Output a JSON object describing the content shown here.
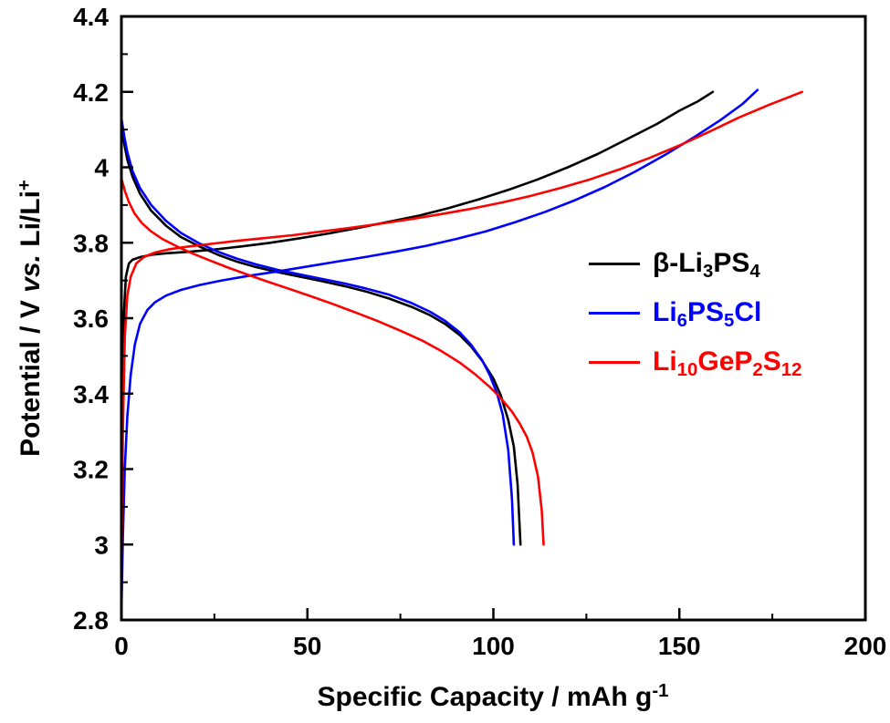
{
  "figure": {
    "background": "#ffffff",
    "axis_color": "#000000"
  },
  "chart_data": {
    "type": "line",
    "title": "",
    "xlabel_parts": [
      {
        "text": "Specific Capacity / mAh g"
      },
      {
        "text": "-1",
        "sup": true
      }
    ],
    "ylabel_parts": [
      {
        "text": "Potential / V "
      },
      {
        "text": "vs.",
        "italic": true
      },
      {
        "text": " Li/Li"
      },
      {
        "text": "+",
        "sup": true
      }
    ],
    "xlim": [
      0,
      200
    ],
    "ylim": [
      2.8,
      4.4
    ],
    "grid": false,
    "legend_position": "right-middle",
    "xticks": [
      0,
      50,
      100,
      150,
      200
    ],
    "xtick_labels": [
      "0",
      "50",
      "100",
      "150",
      "200"
    ],
    "x_minor_ticks": [
      25,
      75,
      125,
      175
    ],
    "yticks": [
      2.8,
      3.0,
      3.2,
      3.4,
      3.6,
      3.8,
      4.0,
      4.2,
      4.4
    ],
    "ytick_labels": [
      "2.8",
      "3",
      "3.2",
      "3.4",
      "3.6",
      "3.8",
      "4",
      "4.2",
      "4.4"
    ],
    "y_minor_ticks": [
      2.9,
      3.1,
      3.3,
      3.5,
      3.7,
      3.9,
      4.1,
      4.3
    ],
    "series": [
      {
        "id": "beta-li3ps4-charge",
        "name": "β-Li3PS4 charge",
        "color": "#000000",
        "points": [
          [
            0,
            2.82
          ],
          [
            0.3,
            3.4
          ],
          [
            0.7,
            3.62
          ],
          [
            1.2,
            3.71
          ],
          [
            2,
            3.745
          ],
          [
            3,
            3.755
          ],
          [
            5,
            3.762
          ],
          [
            8,
            3.768
          ],
          [
            12,
            3.772
          ],
          [
            18,
            3.776
          ],
          [
            25,
            3.782
          ],
          [
            32,
            3.79
          ],
          [
            40,
            3.8
          ],
          [
            48,
            3.812
          ],
          [
            56,
            3.825
          ],
          [
            64,
            3.84
          ],
          [
            72,
            3.856
          ],
          [
            80,
            3.872
          ],
          [
            88,
            3.892
          ],
          [
            96,
            3.915
          ],
          [
            104,
            3.94
          ],
          [
            112,
            3.968
          ],
          [
            120,
            4.0
          ],
          [
            128,
            4.035
          ],
          [
            136,
            4.075
          ],
          [
            144,
            4.115
          ],
          [
            150,
            4.15
          ],
          [
            155,
            4.175
          ],
          [
            159,
            4.2
          ]
        ]
      },
      {
        "id": "beta-li3ps4-discharge",
        "name": "β-Li3PS4 discharge",
        "color": "#000000",
        "points": [
          [
            0,
            4.11
          ],
          [
            0.8,
            4.06
          ],
          [
            1.6,
            4.02
          ],
          [
            3,
            3.975
          ],
          [
            5,
            3.93
          ],
          [
            8,
            3.885
          ],
          [
            12,
            3.845
          ],
          [
            16,
            3.815
          ],
          [
            21,
            3.79
          ],
          [
            26,
            3.768
          ],
          [
            31,
            3.75
          ],
          [
            36,
            3.736
          ],
          [
            42,
            3.722
          ],
          [
            48,
            3.71
          ],
          [
            54,
            3.698
          ],
          [
            60,
            3.685
          ],
          [
            66,
            3.67
          ],
          [
            72,
            3.652
          ],
          [
            78,
            3.63
          ],
          [
            83,
            3.608
          ],
          [
            87,
            3.585
          ],
          [
            91,
            3.555
          ],
          [
            94,
            3.525
          ],
          [
            97,
            3.487
          ],
          [
            100,
            3.44
          ],
          [
            102,
            3.395
          ],
          [
            104,
            3.33
          ],
          [
            105.5,
            3.26
          ],
          [
            106.5,
            3.16
          ],
          [
            107.3,
            3.0
          ]
        ]
      },
      {
        "id": "li6ps5cl-charge",
        "name": "Li6PS5Cl charge",
        "color": "#0000ff",
        "points": [
          [
            0,
            2.82
          ],
          [
            0.4,
            3.02
          ],
          [
            0.9,
            3.2
          ],
          [
            1.6,
            3.34
          ],
          [
            2.5,
            3.45
          ],
          [
            3.6,
            3.53
          ],
          [
            5,
            3.585
          ],
          [
            7,
            3.622
          ],
          [
            9,
            3.642
          ],
          [
            12,
            3.66
          ],
          [
            16,
            3.675
          ],
          [
            21,
            3.688
          ],
          [
            27,
            3.7
          ],
          [
            34,
            3.712
          ],
          [
            42,
            3.724
          ],
          [
            50,
            3.737
          ],
          [
            58,
            3.75
          ],
          [
            66,
            3.763
          ],
          [
            74,
            3.777
          ],
          [
            82,
            3.792
          ],
          [
            90,
            3.81
          ],
          [
            98,
            3.83
          ],
          [
            106,
            3.855
          ],
          [
            114,
            3.882
          ],
          [
            122,
            3.913
          ],
          [
            130,
            3.948
          ],
          [
            138,
            3.988
          ],
          [
            146,
            4.032
          ],
          [
            154,
            4.08
          ],
          [
            161,
            4.125
          ],
          [
            167,
            4.168
          ],
          [
            171,
            4.205
          ]
        ]
      },
      {
        "id": "li6ps5cl-discharge",
        "name": "Li6PS5Cl discharge",
        "color": "#0000ff",
        "points": [
          [
            0,
            4.13
          ],
          [
            0.8,
            4.08
          ],
          [
            1.6,
            4.04
          ],
          [
            3,
            3.99
          ],
          [
            5,
            3.945
          ],
          [
            8,
            3.9
          ],
          [
            12,
            3.858
          ],
          [
            16,
            3.826
          ],
          [
            21,
            3.798
          ],
          [
            26,
            3.776
          ],
          [
            31,
            3.758
          ],
          [
            36,
            3.743
          ],
          [
            42,
            3.728
          ],
          [
            48,
            3.716
          ],
          [
            54,
            3.704
          ],
          [
            60,
            3.692
          ],
          [
            66,
            3.678
          ],
          [
            72,
            3.662
          ],
          [
            78,
            3.64
          ],
          [
            83,
            3.617
          ],
          [
            87,
            3.593
          ],
          [
            91,
            3.562
          ],
          [
            94,
            3.53
          ],
          [
            97,
            3.488
          ],
          [
            99,
            3.45
          ],
          [
            101,
            3.4
          ],
          [
            102.5,
            3.345
          ],
          [
            104,
            3.25
          ],
          [
            105,
            3.12
          ],
          [
            105.5,
            3.0
          ]
        ]
      },
      {
        "id": "li10gep2s12-charge",
        "name": "Li10GeP2S12 charge",
        "color": "#ff0000",
        "points": [
          [
            0,
            2.9
          ],
          [
            0.4,
            3.3
          ],
          [
            0.9,
            3.55
          ],
          [
            1.6,
            3.66
          ],
          [
            2.5,
            3.71
          ],
          [
            4,
            3.745
          ],
          [
            6,
            3.762
          ],
          [
            9,
            3.774
          ],
          [
            13,
            3.783
          ],
          [
            18,
            3.79
          ],
          [
            24,
            3.797
          ],
          [
            31,
            3.805
          ],
          [
            38,
            3.812
          ],
          [
            46,
            3.82
          ],
          [
            54,
            3.83
          ],
          [
            62,
            3.84
          ],
          [
            70,
            3.851
          ],
          [
            78,
            3.863
          ],
          [
            86,
            3.876
          ],
          [
            94,
            3.89
          ],
          [
            102,
            3.906
          ],
          [
            110,
            3.924
          ],
          [
            118,
            3.945
          ],
          [
            126,
            3.968
          ],
          [
            134,
            3.995
          ],
          [
            142,
            4.025
          ],
          [
            150,
            4.058
          ],
          [
            158,
            4.094
          ],
          [
            166,
            4.132
          ],
          [
            174,
            4.165
          ],
          [
            183,
            4.2
          ]
        ]
      },
      {
        "id": "li10gep2s12-discharge",
        "name": "Li10GeP2S12 discharge",
        "color": "#ff0000",
        "points": [
          [
            0,
            3.97
          ],
          [
            1,
            3.935
          ],
          [
            2,
            3.908
          ],
          [
            3.5,
            3.878
          ],
          [
            5.5,
            3.852
          ],
          [
            8,
            3.83
          ],
          [
            11,
            3.81
          ],
          [
            15,
            3.79
          ],
          [
            19,
            3.772
          ],
          [
            24,
            3.752
          ],
          [
            29,
            3.733
          ],
          [
            34,
            3.715
          ],
          [
            39,
            3.698
          ],
          [
            45,
            3.678
          ],
          [
            51,
            3.658
          ],
          [
            57,
            3.637
          ],
          [
            63,
            3.615
          ],
          [
            69,
            3.592
          ],
          [
            75,
            3.567
          ],
          [
            81,
            3.54
          ],
          [
            86,
            3.513
          ],
          [
            91,
            3.482
          ],
          [
            95,
            3.452
          ],
          [
            99,
            3.418
          ],
          [
            102,
            3.388
          ],
          [
            105,
            3.352
          ],
          [
            107,
            3.322
          ],
          [
            109,
            3.285
          ],
          [
            110.5,
            3.245
          ],
          [
            112,
            3.18
          ],
          [
            113,
            3.09
          ],
          [
            113.5,
            3.0
          ]
        ]
      }
    ],
    "legend": [
      {
        "color": "#000000",
        "parts": [
          {
            "text": "β-Li"
          },
          {
            "text": "3",
            "sub": true
          },
          {
            "text": "PS"
          },
          {
            "text": "4",
            "sub": true
          }
        ]
      },
      {
        "color": "#0000ff",
        "parts": [
          {
            "text": "Li"
          },
          {
            "text": "6",
            "sub": true
          },
          {
            "text": "PS"
          },
          {
            "text": "5",
            "sub": true
          },
          {
            "text": "Cl"
          }
        ]
      },
      {
        "color": "#ff0000",
        "parts": [
          {
            "text": "Li"
          },
          {
            "text": "10",
            "sub": true
          },
          {
            "text": "GeP"
          },
          {
            "text": "2",
            "sub": true
          },
          {
            "text": "S"
          },
          {
            "text": "12",
            "sub": true
          }
        ]
      }
    ]
  }
}
